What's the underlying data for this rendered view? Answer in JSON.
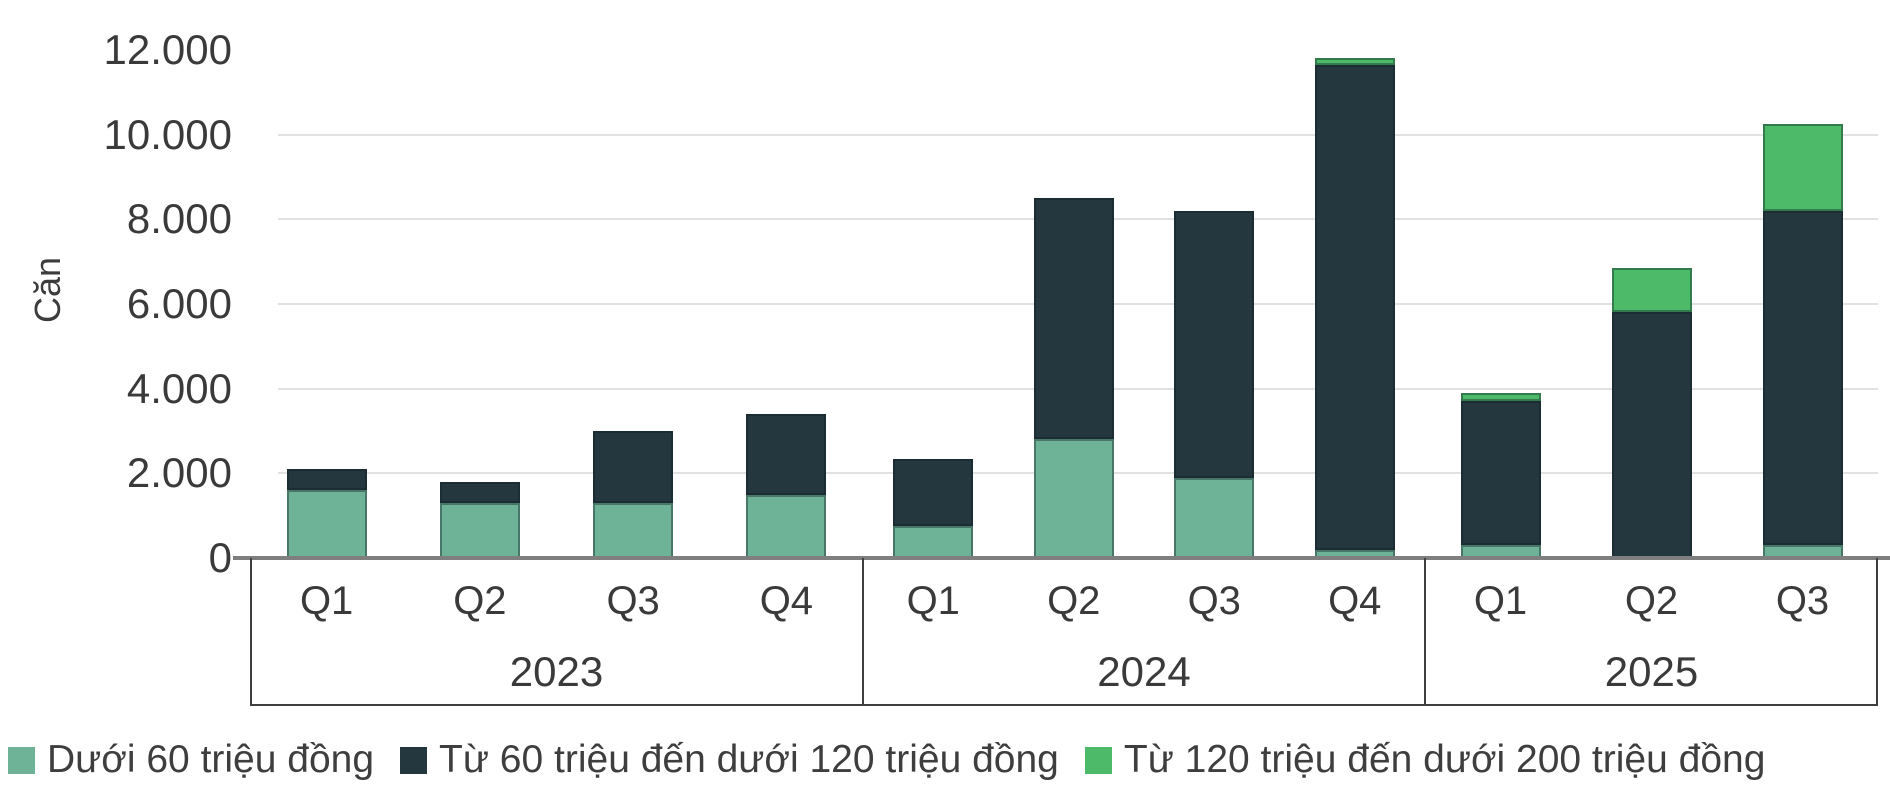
{
  "chart_data": {
    "type": "bar",
    "stacked": true,
    "title": "",
    "ylabel": "Căn",
    "xlabel": "",
    "ylim": [
      0,
      12000
    ],
    "ytick_interval": 2000,
    "yticks": [
      {
        "value": 0,
        "label": "0",
        "gridline": false
      },
      {
        "value": 2000,
        "label": "2.000",
        "gridline": true
      },
      {
        "value": 4000,
        "label": "4.000",
        "gridline": true
      },
      {
        "value": 6000,
        "label": "6.000",
        "gridline": true
      },
      {
        "value": 8000,
        "label": "8.000",
        "gridline": true
      },
      {
        "value": 10000,
        "label": "10.000",
        "gridline": true
      },
      {
        "value": 12000,
        "label": "12.000",
        "gridline": false
      }
    ],
    "groups": [
      {
        "year": "2023",
        "quarters": [
          "Q1",
          "Q2",
          "Q3",
          "Q4"
        ]
      },
      {
        "year": "2024",
        "quarters": [
          "Q1",
          "Q2",
          "Q3",
          "Q4"
        ]
      },
      {
        "year": "2025",
        "quarters": [
          "Q1",
          "Q2",
          "Q3"
        ]
      }
    ],
    "categories": [
      "2023 Q1",
      "2023 Q2",
      "2023 Q3",
      "2023 Q4",
      "2024 Q1",
      "2024 Q2",
      "2024 Q3",
      "2024 Q4",
      "2025 Q1",
      "2025 Q2",
      "2025 Q3"
    ],
    "series": [
      {
        "name": "Dưới 60 triệu đồng",
        "color": "#6EB298",
        "values": [
          1600,
          1300,
          1300,
          1500,
          750,
          2800,
          1900,
          200,
          300,
          0,
          300
        ]
      },
      {
        "name": "Từ 60 triệu đến dưới 120 triệu đồng",
        "color": "#24363E",
        "values": [
          500,
          500,
          1700,
          1900,
          1600,
          5700,
          6300,
          11450,
          3400,
          5800,
          7900
        ]
      },
      {
        "name": "Từ 120 triệu đến dưới 200 triệu đồng",
        "color": "#4CBA69",
        "values": [
          0,
          0,
          0,
          0,
          0,
          0,
          0,
          150,
          200,
          1050,
          2050
        ]
      }
    ],
    "totals": [
      2100,
      1800,
      3000,
      3400,
      2350,
      8500,
      8200,
      11800,
      3900,
      6850,
      10250
    ],
    "grid": true,
    "legend_position": "bottom"
  },
  "colors": {
    "background": "#ffffff",
    "gridline": "#e2e2e2",
    "baseline": "#7f7f7f",
    "axis_box_border": "#3f3f3f",
    "text": "#3c3c3c"
  }
}
